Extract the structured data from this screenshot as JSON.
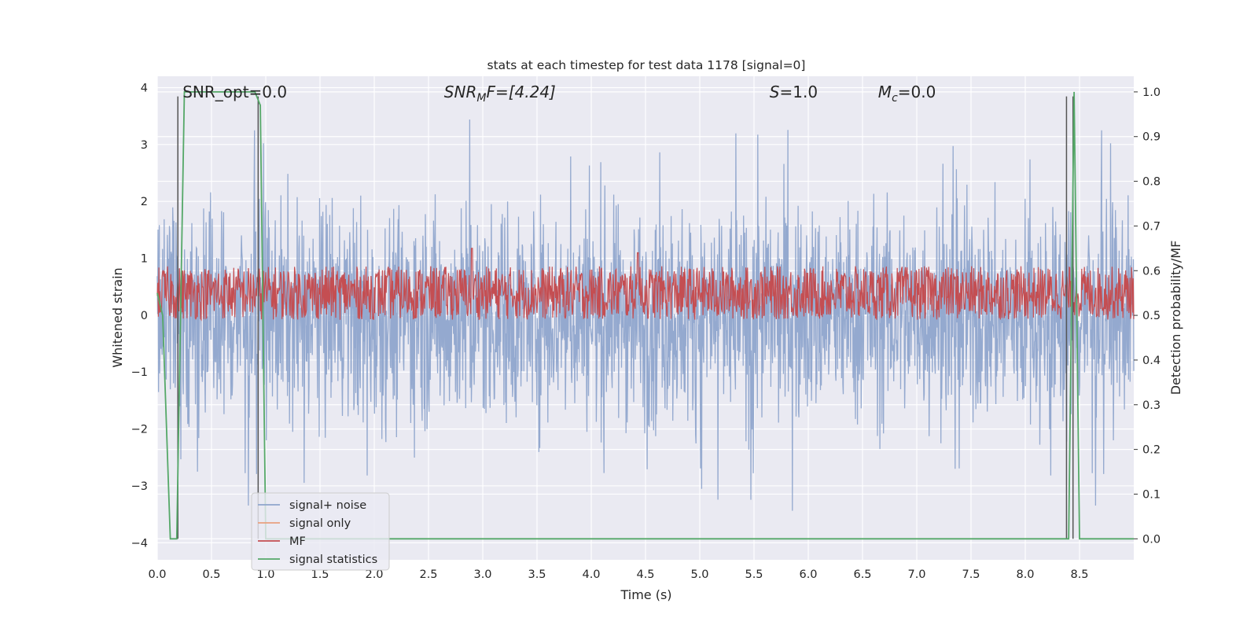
{
  "chart_data": {
    "type": "line",
    "title": "stats at each timestep for test data 1178 [signal=0]",
    "xlabel": "Time (s)",
    "ylabel": "Whitened strain",
    "ylabel_right": "Detection probability/MF",
    "xlim": [
      0.0,
      9.0
    ],
    "ylim": [
      -4.3,
      4.2
    ],
    "ylim_right": [
      -0.047,
      1.035
    ],
    "x_ticks": [
      "0.0",
      "0.5",
      "1.0",
      "1.5",
      "2.0",
      "2.5",
      "3.0",
      "3.5",
      "4.0",
      "4.5",
      "5.0",
      "5.5",
      "6.0",
      "6.5",
      "7.0",
      "7.5",
      "8.0",
      "8.5"
    ],
    "y_ticks": [
      "4",
      "3",
      "2",
      "1",
      "0",
      "−1",
      "−2",
      "−3",
      "−4"
    ],
    "y_right_ticks": [
      "1.0",
      "0.9",
      "0.8",
      "0.7",
      "0.6",
      "0.5",
      "0.4",
      "0.3",
      "0.2",
      "0.1",
      "0.0"
    ],
    "annotations": [
      {
        "text": "SNR_opt=0.0",
        "x": 0.19
      },
      {
        "text": "SNR_MF=[4.24]",
        "x": 2.6,
        "italic_part": "SNR",
        "sub": "M",
        "rest": "F=[4.24]"
      },
      {
        "text": "S=1.0",
        "x": 5.6,
        "italic_part": "S",
        "rest": "=1.0"
      },
      {
        "text": "M_c=0.0",
        "x": 6.6,
        "italic_part": "M",
        "sub": "c",
        "rest": "=0.0"
      }
    ],
    "legend": {
      "placement": "lower-left",
      "entries": [
        {
          "label": "signal+ noise",
          "color": "#8fa5cc"
        },
        {
          "label": "signal only",
          "color": "#e9a07f"
        },
        {
          "label": "MF",
          "color": "#c44e52"
        },
        {
          "label": "signal statistics",
          "color": "#55a868"
        }
      ]
    },
    "series": [
      {
        "name": "signal+ noise",
        "axis": "left",
        "color": "#8fa5cc",
        "kind": "noise",
        "amplitude_typical": 1.5,
        "peak_max": 3.9,
        "peak_min": -4.0
      },
      {
        "name": "MF",
        "axis": "right",
        "color": "#c44e52",
        "kind": "noise",
        "center": 0.55,
        "band": 0.06,
        "spikes": [
          {
            "x": 2.9,
            "y": 0.65
          },
          {
            "x": 4.43,
            "y": 0.64
          }
        ]
      },
      {
        "name": "signal statistics",
        "axis": "right",
        "color": "#55a868",
        "x": [
          0.0,
          0.05,
          0.12,
          0.18,
          0.25,
          0.9,
          0.95,
          1.0,
          6.25,
          6.3,
          8.35,
          8.4,
          8.45,
          8.5,
          8.55,
          9.0
        ],
        "y": [
          0.55,
          0.5,
          0.0,
          0.0,
          1.0,
          1.0,
          0.97,
          0.0,
          0.0,
          0.0,
          0.0,
          0.0,
          1.0,
          0.0,
          0.0,
          0.0
        ]
      },
      {
        "name": "threshold markers",
        "axis": "right",
        "color": "#555555",
        "x_positions": [
          0.19,
          0.93,
          8.38,
          8.44
        ],
        "y_top": 0.99
      }
    ],
    "grid": true,
    "background": "#eaeaf2"
  }
}
